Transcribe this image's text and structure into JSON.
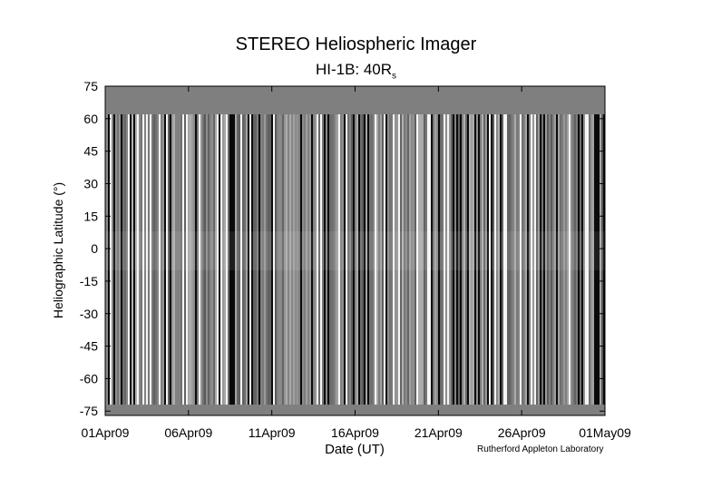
{
  "chart_data": {
    "type": "heatmap",
    "title": "STEREO Heliospheric Imager",
    "subtitle_main": "HI-1B: 40R",
    "subtitle_sub": "s",
    "xlabel": "Date (UT)",
    "ylabel": "Heliographic Latitude (°)",
    "credit": "Rutherford Appleton Laboratory",
    "x_ticks": [
      "01Apr09",
      "06Apr09",
      "11Apr09",
      "16Apr09",
      "21Apr09",
      "26Apr09",
      "01May09"
    ],
    "xlim": [
      "2009-04-01",
      "2009-05-01"
    ],
    "y_ticks": [
      75,
      60,
      45,
      30,
      15,
      0,
      -15,
      -30,
      -45,
      -60,
      -75
    ],
    "ylim": [
      -77,
      75
    ],
    "data_latitude_range": [
      -72,
      62
    ],
    "colormap": "grayscale",
    "background_fill": "#7f7f7f",
    "grid": false
  }
}
